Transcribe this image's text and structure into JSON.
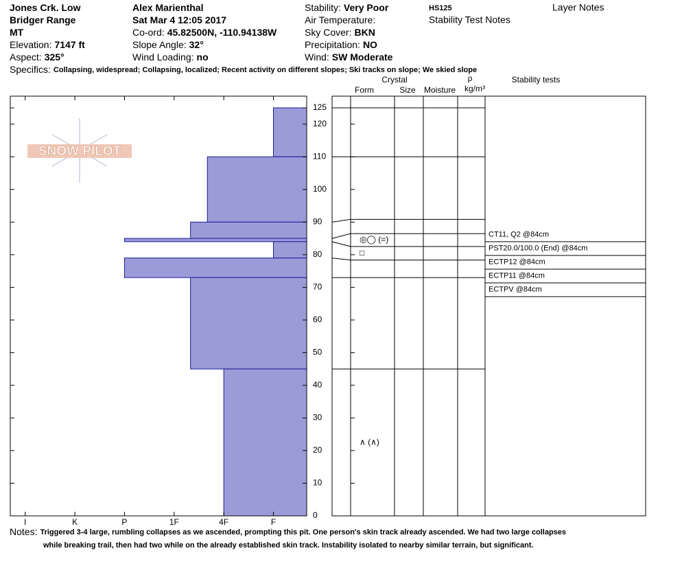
{
  "header": {
    "col1": [
      {
        "value": "Jones Crk. Low"
      },
      {
        "value": "Bridger Range"
      },
      {
        "value": "MT"
      },
      {
        "label": "Elevation:",
        "value": "7147 ft"
      },
      {
        "label": "Aspect:",
        "value": "325°"
      }
    ],
    "col2": [
      {
        "value": "Alex Marienthal"
      },
      {
        "value": "Sat Mar 4 12:05 2017"
      },
      {
        "label": "Co-ord:",
        "value": "45.82500N, -110.94138W"
      },
      {
        "label": "Slope Angle:",
        "value": "32°"
      },
      {
        "label": "Wind Loading:",
        "value": "no"
      }
    ],
    "col3": [
      {
        "label": "Stability:",
        "value": "Very Poor"
      },
      {
        "label": "Air Temperature:",
        "value": ""
      },
      {
        "label": "Sky Cover:",
        "value": "BKN"
      },
      {
        "label": "Precipitation:",
        "value": "NO"
      },
      {
        "label": "Wind:",
        "value": "SW Moderate"
      }
    ],
    "hs": "HS125",
    "stability_test_notes": "Stability Test Notes",
    "layer_notes": "Layer Notes"
  },
  "specifics": {
    "label": "Specifics:",
    "text": "Collapsing, widespread; Collapsing, localized; Recent activity on different slopes; Ski tracks on slope; We skied slope"
  },
  "logo": "SNOW PILOT",
  "columns": {
    "crystal": "Crystal",
    "form": "Form",
    "size": "Size",
    "moisture": "Moisture",
    "rho": "ρ",
    "density_unit": "kg/m³",
    "stability_tests": "Stability tests"
  },
  "chart_data": {
    "type": "hardness-profile",
    "color": "#9b9bd7",
    "xlim": [
      0.33,
      6.3
    ],
    "xticks": [
      {
        "value": 6,
        "label": "I"
      },
      {
        "value": 5,
        "label": "K"
      },
      {
        "value": 4,
        "label": "P"
      },
      {
        "value": 3,
        "label": "1F"
      },
      {
        "value": 2,
        "label": "4F"
      },
      {
        "value": 1,
        "label": "F"
      }
    ],
    "ylim": [
      0,
      125
    ],
    "yticks": [
      0,
      10,
      20,
      30,
      40,
      50,
      60,
      70,
      80,
      90,
      100,
      110,
      120,
      125
    ],
    "layers": [
      {
        "bottom": 110,
        "top": 125,
        "hardness": 1
      },
      {
        "bottom": 90,
        "top": 110,
        "hardness": 2.33
      },
      {
        "bottom": 85,
        "top": 90,
        "hardness": 2.67
      },
      {
        "bottom": 84,
        "top": 85,
        "hardness": 4,
        "form": "◎◯ (=)"
      },
      {
        "bottom": 79,
        "top": 84,
        "hardness": 1,
        "form": "□"
      },
      {
        "bottom": 73,
        "top": 79,
        "hardness": 4
      },
      {
        "bottom": 45,
        "top": 73,
        "hardness": 2.67
      },
      {
        "bottom": 0,
        "top": 45,
        "hardness": 2,
        "form": "∧ (∧)"
      }
    ],
    "stability_tests": [
      "CT11, Q2 @84cm",
      "PST20.0/100.0 (End) @84cm",
      "ECTP12 @84cm",
      "ECTP11 @84cm",
      "ECTPV @84cm"
    ]
  },
  "notes": {
    "label": "Notes:",
    "lines": [
      "Triggered 3-4 large, rumbling collapses as we ascended, prompting this pit. One person's skin track already ascended. We had two large collapses",
      "while breaking trail, then had two while on the already established skin track. Instability isolated to nearby similar terrain, but significant."
    ]
  }
}
